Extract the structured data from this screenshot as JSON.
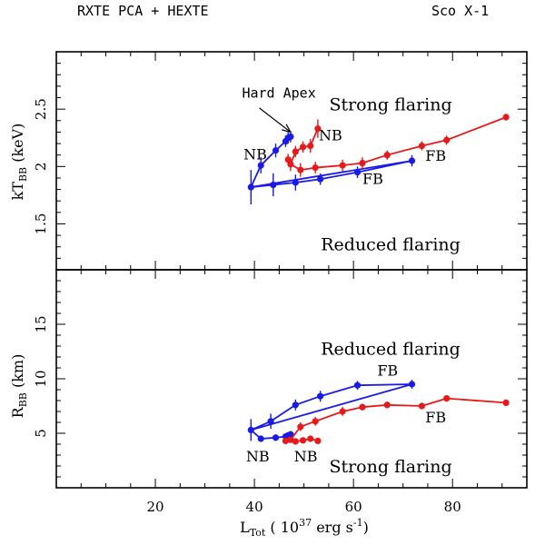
{
  "header": {
    "left": "RXTE PCA + HEXTE",
    "right": "Sco X-1"
  },
  "colors": {
    "blue": "#1a1ae6",
    "red": "#e61a1a",
    "axis": "#000000"
  },
  "chart_data": [
    {
      "type": "line",
      "panel": "top",
      "ylabel": {
        "main": "kT",
        "sub": "BB",
        "unit": " (keV)"
      },
      "xlim": [
        0,
        95
      ],
      "ylim": [
        1.1,
        3.0
      ],
      "yticks": [
        1.5,
        2,
        2.5
      ],
      "ytick_labels": [
        "1.5",
        "2",
        "2.5"
      ],
      "series": [
        {
          "name": "blue",
          "color": "#1a1ae6",
          "points": [
            {
              "x": 39.3,
              "y": 1.82,
              "err": 0.15
            },
            {
              "x": 43.8,
              "y": 1.84,
              "err": 0.1
            },
            {
              "x": 48.3,
              "y": 1.86,
              "err": 0.07
            },
            {
              "x": 53.3,
              "y": 1.89,
              "err": 0.05
            },
            {
              "x": 60.8,
              "y": 1.95,
              "err": 0.05
            },
            {
              "x": 71.8,
              "y": 2.05,
              "err": 0.05
            },
            {
              "x": 39.3,
              "y": 1.82,
              "err": 0
            },
            {
              "x": 41.3,
              "y": 2.01,
              "err": 0.07
            },
            {
              "x": 44.3,
              "y": 2.14,
              "err": 0.06
            },
            {
              "x": 46.3,
              "y": 2.22,
              "err": 0.05
            },
            {
              "x": 46.8,
              "y": 2.25,
              "err": 0.05
            },
            {
              "x": 47.3,
              "y": 2.26,
              "err": 0.05
            }
          ]
        },
        {
          "name": "red",
          "color": "#e61a1a",
          "points": [
            {
              "x": 52.8,
              "y": 2.33,
              "err": 0.08
            },
            {
              "x": 51.3,
              "y": 2.18,
              "err": 0.06
            },
            {
              "x": 49.8,
              "y": 2.17,
              "err": 0.05
            },
            {
              "x": 48.3,
              "y": 2.13,
              "err": 0.05
            },
            {
              "x": 47.3,
              "y": 2.02,
              "err": 0.06
            },
            {
              "x": 46.8,
              "y": 2.06,
              "err": 0.05
            },
            {
              "x": 47.3,
              "y": 2.02,
              "err": 0
            },
            {
              "x": 49.3,
              "y": 1.97,
              "err": 0.06
            },
            {
              "x": 52.3,
              "y": 1.99,
              "err": 0.05
            },
            {
              "x": 57.8,
              "y": 2.01,
              "err": 0.05
            },
            {
              "x": 61.8,
              "y": 2.03,
              "err": 0.05
            },
            {
              "x": 66.8,
              "y": 2.1,
              "err": 0.04
            },
            {
              "x": 73.8,
              "y": 2.18,
              "err": 0.04
            },
            {
              "x": 78.8,
              "y": 2.23,
              "err": 0.04
            },
            {
              "x": 90.8,
              "y": 2.43,
              "err": 0.03
            }
          ]
        }
      ],
      "annotations": [
        {
          "text": "Hard Apex",
          "x": 37.5,
          "y": 2.6,
          "anchor": "start",
          "size": 15,
          "font": "mono"
        },
        {
          "text": "Strong flaring",
          "x": 67.5,
          "y": 2.49,
          "anchor": "middle",
          "size": 19,
          "font": "serif"
        },
        {
          "text": "NB",
          "x": 53.0,
          "y": 2.23,
          "anchor": "start",
          "size": 16,
          "font": "serif"
        },
        {
          "text": "NB",
          "x": 37.8,
          "y": 2.06,
          "anchor": "start",
          "size": 16,
          "font": "serif"
        },
        {
          "text": "FB",
          "x": 74.5,
          "y": 2.05,
          "anchor": "start",
          "size": 16,
          "font": "serif"
        },
        {
          "text": "FB",
          "x": 61.8,
          "y": 1.85,
          "anchor": "start",
          "size": 16,
          "font": "serif"
        },
        {
          "text": "Reduced flaring",
          "x": 67.5,
          "y": 1.27,
          "anchor": "middle",
          "size": 19,
          "font": "serif"
        }
      ],
      "arrow": {
        "from": [
          41.0,
          2.51
        ],
        "to": [
          47.3,
          2.3
        ]
      }
    },
    {
      "type": "line",
      "panel": "bottom",
      "ylabel": {
        "main": "R",
        "sub": "BB",
        "unit": " (km)"
      },
      "xlabel": {
        "main": "L",
        "sub": "Tot",
        "pre": " ( 10",
        "sup": "37",
        "post": " erg s",
        "sup2": "-1",
        "end": ")"
      },
      "xlim": [
        0,
        95
      ],
      "ylim": [
        0,
        20
      ],
      "yticks": [
        5,
        10,
        15
      ],
      "ytick_labels": [
        "5",
        "10",
        "15"
      ],
      "xticks": [
        20,
        40,
        60,
        80
      ],
      "xtick_labels": [
        "20",
        "40",
        "60",
        "80"
      ],
      "series": [
        {
          "name": "blue",
          "color": "#1a1ae6",
          "points": [
            {
              "x": 39.3,
              "y": 5.3,
              "err": 1.0
            },
            {
              "x": 43.3,
              "y": 6.1,
              "err": 0.7
            },
            {
              "x": 48.3,
              "y": 7.6,
              "err": 0.5
            },
            {
              "x": 53.3,
              "y": 8.4,
              "err": 0.5
            },
            {
              "x": 60.8,
              "y": 9.4,
              "err": 0.4
            },
            {
              "x": 71.8,
              "y": 9.5,
              "err": 0.4
            },
            {
              "x": 39.3,
              "y": 5.3,
              "err": 0
            },
            {
              "x": 41.3,
              "y": 4.5,
              "err": 0.3
            },
            {
              "x": 44.3,
              "y": 4.6,
              "err": 0.3
            },
            {
              "x": 46.3,
              "y": 4.7,
              "err": 0.3
            },
            {
              "x": 46.8,
              "y": 4.8,
              "err": 0.3
            },
            {
              "x": 47.3,
              "y": 4.9,
              "err": 0.3
            }
          ]
        },
        {
          "name": "red",
          "color": "#e61a1a",
          "points": [
            {
              "x": 52.8,
              "y": 4.3,
              "err": 0.25
            },
            {
              "x": 51.3,
              "y": 4.5,
              "err": 0.25
            },
            {
              "x": 49.8,
              "y": 4.35,
              "err": 0.25
            },
            {
              "x": 48.3,
              "y": 4.25,
              "err": 0.25
            },
            {
              "x": 47.3,
              "y": 4.4,
              "err": 0.25
            },
            {
              "x": 46.3,
              "y": 4.3,
              "err": 0.25
            },
            {
              "x": 47.3,
              "y": 4.4,
              "err": 0
            },
            {
              "x": 49.3,
              "y": 5.6,
              "err": 0.4
            },
            {
              "x": 52.3,
              "y": 6.1,
              "err": 0.4
            },
            {
              "x": 57.8,
              "y": 7.0,
              "err": 0.4
            },
            {
              "x": 61.8,
              "y": 7.4,
              "err": 0.3
            },
            {
              "x": 66.8,
              "y": 7.6,
              "err": 0.3
            },
            {
              "x": 73.8,
              "y": 7.5,
              "err": 0.3
            },
            {
              "x": 78.8,
              "y": 8.2,
              "err": 0.3
            },
            {
              "x": 90.8,
              "y": 7.8,
              "err": 0.3
            }
          ]
        }
      ],
      "annotations": [
        {
          "text": "Reduced flaring",
          "x": 67.5,
          "y": 12.2,
          "anchor": "middle",
          "size": 19,
          "font": "serif"
        },
        {
          "text": "FB",
          "x": 64.8,
          "y": 10.3,
          "anchor": "start",
          "size": 16,
          "font": "serif"
        },
        {
          "text": "FB",
          "x": 74.5,
          "y": 6.0,
          "anchor": "start",
          "size": 16,
          "font": "serif"
        },
        {
          "text": "NB",
          "x": 38.3,
          "y": 2.4,
          "anchor": "start",
          "size": 16,
          "font": "serif"
        },
        {
          "text": "NB",
          "x": 48.0,
          "y": 2.4,
          "anchor": "start",
          "size": 16,
          "font": "serif"
        },
        {
          "text": "Strong flaring",
          "x": 67.5,
          "y": 1.4,
          "anchor": "middle",
          "size": 19,
          "font": "serif"
        }
      ]
    }
  ]
}
